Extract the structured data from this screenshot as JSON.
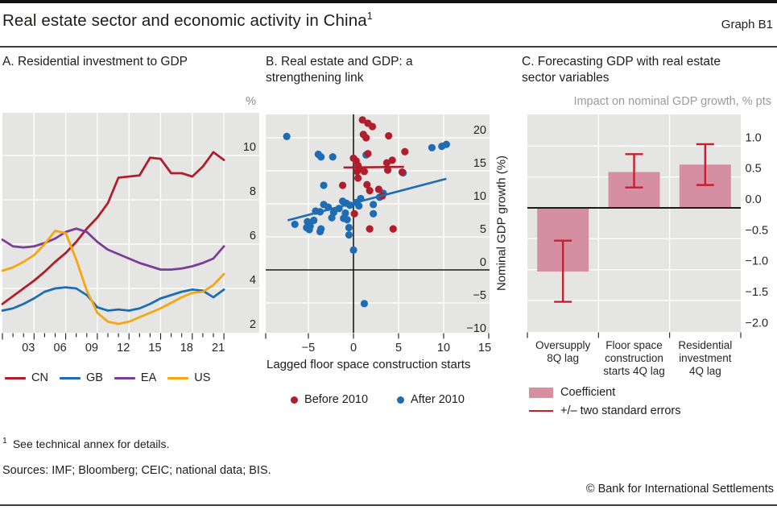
{
  "header": {
    "title": "Real estate sector and economic activity in China",
    "title_superscript": "1",
    "graph_label": "Graph B1"
  },
  "panels": {
    "a": {
      "title": "A. Residential investment to GDP",
      "unit_label": "%"
    },
    "b": {
      "title_lines": [
        "B. Real estate and GDP: a",
        "strengthening link"
      ],
      "xlabel": "Lagged floor space construction starts",
      "ylabel": "Nominal GDP growth (%)"
    },
    "c": {
      "title_lines": [
        "C. Forecasting GDP with real estate",
        "sector variables"
      ],
      "subtitle": "Impact on nominal GDP growth, % pts"
    }
  },
  "footer": {
    "footnote_marker": "1",
    "footnote_text": "See technical annex for details.",
    "sources": "Sources: IMF; Bloomberg; CEIC; national data; BIS.",
    "copyright": "© Bank for International Settlements"
  },
  "colors": {
    "cn_red": "#b01e2c",
    "gb_blue": "#1e6cb3",
    "ea_purple": "#7b3d98",
    "us_yellow": "#f3a712",
    "bar_pink": "#d68fa2",
    "error_red": "#c4202e",
    "plot_bg": "#e5e5e3",
    "grid": "#ffffff",
    "axis_black": "#1a1a1a"
  },
  "chart_data": [
    {
      "type": "line",
      "panel": "A",
      "title": "A. Residential investment to GDP",
      "unit": "%",
      "x": [
        2000,
        2001,
        2002,
        2003,
        2004,
        2005,
        2006,
        2007,
        2008,
        2009,
        2010,
        2011,
        2012,
        2013,
        2014,
        2015,
        2016,
        2017,
        2018,
        2019,
        2020,
        2021
      ],
      "series": [
        {
          "name": "CN",
          "color": "#b01e2c",
          "values": [
            3.3,
            3.65,
            4.0,
            4.35,
            4.75,
            5.2,
            5.6,
            6.1,
            6.7,
            7.2,
            7.85,
            9.0,
            9.05,
            9.1,
            9.9,
            9.85,
            9.2,
            9.2,
            9.05,
            9.5,
            10.15,
            9.8
          ]
        },
        {
          "name": "GB",
          "color": "#1e6cb3",
          "values": [
            3.0,
            3.1,
            3.3,
            3.55,
            3.85,
            4.0,
            4.05,
            4.0,
            3.7,
            3.15,
            3.0,
            3.05,
            3.0,
            3.1,
            3.3,
            3.55,
            3.7,
            3.85,
            3.95,
            3.9,
            3.6,
            3.95
          ]
        },
        {
          "name": "EA",
          "color": "#7b3d98",
          "values": [
            6.2,
            5.9,
            5.85,
            5.9,
            6.05,
            6.25,
            6.55,
            6.7,
            6.55,
            6.1,
            5.75,
            5.55,
            5.35,
            5.15,
            5.0,
            4.85,
            4.85,
            4.9,
            5.0,
            5.15,
            5.35,
            5.9
          ]
        },
        {
          "name": "US",
          "color": "#f3a712",
          "values": [
            4.8,
            4.95,
            5.2,
            5.5,
            6.0,
            6.6,
            6.5,
            5.3,
            3.9,
            2.9,
            2.5,
            2.4,
            2.5,
            2.7,
            2.9,
            3.1,
            3.35,
            3.6,
            3.8,
            3.85,
            4.15,
            4.65
          ]
        }
      ],
      "x_tick_years": [
        2003,
        2006,
        2009,
        2012,
        2015,
        2018,
        2021
      ],
      "x_tick_labels": [
        "03",
        "06",
        "09",
        "12",
        "15",
        "18",
        "21"
      ],
      "y_ticks": {
        "values": [
          2,
          4,
          6,
          8,
          10
        ],
        "labels": [
          "2",
          "4",
          "6",
          "8",
          "10"
        ]
      },
      "xlim": [
        2000,
        2022
      ],
      "ylim": [
        2,
        11.9
      ]
    },
    {
      "type": "scatter",
      "panel": "B",
      "title": "B. Real estate and GDP: a strengthening link",
      "xlabel": "Lagged floor space construction starts",
      "ylabel": "Nominal GDP growth (%)",
      "xlim": [
        -9.7,
        15.1
      ],
      "ylim": [
        -9.5,
        23.5
      ],
      "x_ticks": {
        "values": [
          -10,
          -5,
          0,
          5,
          10,
          15
        ],
        "labels": [
          "",
          "−5",
          "0",
          "5",
          "10",
          "15"
        ]
      },
      "y_ticks": {
        "values": [
          20,
          15,
          10,
          5,
          0,
          -5,
          -10
        ],
        "labels": [
          "20",
          "15",
          "10",
          "5",
          "0",
          "−5",
          "−10"
        ]
      },
      "series": [
        {
          "name": "Before 2010",
          "color": "#b01e2c",
          "points": [
            [
              1.0,
              22.7
            ],
            [
              1.6,
              22.2
            ],
            [
              2.1,
              21.7
            ],
            [
              1.1,
              20.5
            ],
            [
              1.4,
              20.0
            ],
            [
              3.9,
              20.3
            ],
            [
              1.6,
              17.6
            ],
            [
              5.7,
              17.9
            ],
            [
              0.0,
              16.9
            ],
            [
              0.3,
              16.5
            ],
            [
              4.3,
              16.6
            ],
            [
              3.7,
              16.2
            ],
            [
              0.5,
              15.8
            ],
            [
              0.6,
              15.3
            ],
            [
              3.8,
              15.1
            ],
            [
              0.4,
              14.9
            ],
            [
              1.2,
              14.9
            ],
            [
              5.4,
              14.8
            ],
            [
              0.5,
              13.9
            ],
            [
              -1.2,
              12.8
            ],
            [
              1.5,
              12.9
            ],
            [
              1.8,
              12.0
            ],
            [
              2.8,
              12.2
            ],
            [
              3.2,
              11.2
            ],
            [
              0.1,
              8.5
            ],
            [
              1.8,
              6.2
            ],
            [
              4.4,
              6.2
            ]
          ]
        },
        {
          "name": "After 2010",
          "color": "#1e6cb3",
          "points": [
            [
              -7.4,
              20.2
            ],
            [
              -3.9,
              17.5
            ],
            [
              -3.6,
              17.1
            ],
            [
              -2.3,
              17.1
            ],
            [
              1.4,
              17.4
            ],
            [
              8.7,
              18.5
            ],
            [
              9.8,
              18.7
            ],
            [
              10.3,
              19.0
            ],
            [
              5.5,
              14.7
            ],
            [
              -3.3,
              12.8
            ],
            [
              2.9,
              11.0
            ],
            [
              3.3,
              11.6
            ],
            [
              0.8,
              10.8
            ],
            [
              -1.2,
              10.4
            ],
            [
              -0.8,
              10.1
            ],
            [
              -0.4,
              9.8
            ],
            [
              0.3,
              10.2
            ],
            [
              0.6,
              9.7
            ],
            [
              2.2,
              9.9
            ],
            [
              -3.3,
              9.9
            ],
            [
              -2.8,
              9.5
            ],
            [
              -4.2,
              8.9
            ],
            [
              -3.7,
              8.8
            ],
            [
              -2.2,
              8.7
            ],
            [
              -1.6,
              9.3
            ],
            [
              -0.9,
              8.6
            ],
            [
              2.2,
              8.5
            ],
            [
              -2.4,
              7.9
            ],
            [
              -1.1,
              7.8
            ],
            [
              -0.7,
              7.6
            ],
            [
              -5.1,
              7.3
            ],
            [
              -4.4,
              7.5
            ],
            [
              -6.5,
              6.9
            ],
            [
              -5.2,
              6.4
            ],
            [
              -4.8,
              6.6
            ],
            [
              -4.9,
              6.1
            ],
            [
              -3.6,
              6.2
            ],
            [
              -3.7,
              5.8
            ],
            [
              -0.5,
              6.4
            ],
            [
              -0.5,
              5.3
            ],
            [
              0.0,
              3.0
            ],
            [
              1.2,
              -5.1
            ]
          ]
        }
      ],
      "trend_lines": [
        {
          "series": "Before 2010",
          "color": "#b01e2c",
          "x1": -1.1,
          "y1": 15.5,
          "x2": 5.6,
          "y2": 15.6
        },
        {
          "series": "After 2010",
          "color": "#1e6cb3",
          "x1": -7.3,
          "y1": 7.5,
          "x2": 10.3,
          "y2": 13.8
        }
      ],
      "zero_line_x": 0,
      "zero_line_y": 0
    },
    {
      "type": "bar",
      "panel": "C",
      "title": "C. Forecasting GDP with real estate sector variables",
      "subtitle": "Impact on nominal GDP growth, % pts",
      "categories": [
        [
          "Oversupply",
          "8Q lag"
        ],
        [
          "Floor space",
          "construction",
          "starts 4Q lag"
        ],
        [
          "Residential",
          "investment",
          "4Q lag"
        ]
      ],
      "values": [
        -1.03,
        0.58,
        0.7
      ],
      "error_low": [
        -1.52,
        0.33,
        0.37
      ],
      "error_high": [
        -0.53,
        0.87,
        1.03
      ],
      "y_ticks": {
        "values": [
          1.0,
          0.5,
          0.0,
          -0.5,
          -1.0,
          -1.5,
          -2.0
        ],
        "labels": [
          "1.0",
          "0.5",
          "0.0",
          "−0.5",
          "−1.0",
          "−1.5",
          "−2.0"
        ]
      },
      "ylim": [
        -2.0,
        1.5
      ],
      "legend": [
        {
          "label": "Coefficient",
          "swatch": "box"
        },
        {
          "label": "+/– two standard errors",
          "swatch": "line"
        }
      ]
    }
  ]
}
